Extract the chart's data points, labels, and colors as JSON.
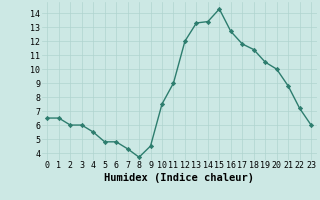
{
  "x": [
    0,
    1,
    2,
    3,
    4,
    5,
    6,
    7,
    8,
    9,
    10,
    11,
    12,
    13,
    14,
    15,
    16,
    17,
    18,
    19,
    20,
    21,
    22,
    23
  ],
  "y": [
    6.5,
    6.5,
    6.0,
    6.0,
    5.5,
    4.8,
    4.8,
    4.3,
    3.7,
    4.5,
    7.5,
    9.0,
    12.0,
    13.3,
    13.4,
    14.3,
    12.7,
    11.8,
    11.4,
    10.5,
    10.0,
    8.8,
    7.2,
    6.0
  ],
  "line_color": "#2d7d6e",
  "marker": "D",
  "marker_size": 2.2,
  "bg_color": "#cce8e4",
  "grid_color": "#b0d4cf",
  "xlabel": "Humidex (Indice chaleur)",
  "xlim": [
    -0.5,
    23.5
  ],
  "ylim": [
    3.5,
    14.8
  ],
  "yticks": [
    4,
    5,
    6,
    7,
    8,
    9,
    10,
    11,
    12,
    13,
    14
  ],
  "xticks": [
    0,
    1,
    2,
    3,
    4,
    5,
    6,
    7,
    8,
    9,
    10,
    11,
    12,
    13,
    14,
    15,
    16,
    17,
    18,
    19,
    20,
    21,
    22,
    23
  ],
  "tick_fontsize": 6,
  "xlabel_fontsize": 7.5
}
